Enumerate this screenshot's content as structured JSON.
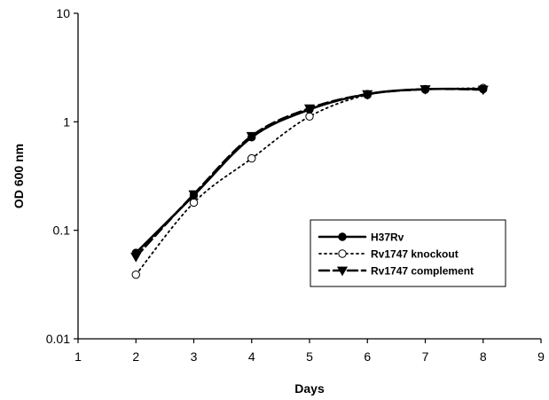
{
  "chart_data": {
    "type": "line",
    "title": "",
    "xlabel": "Days",
    "ylabel": "OD 600 nm",
    "xlim": [
      1,
      9
    ],
    "ylim": [
      0.01,
      10
    ],
    "yscale": "log",
    "grid": false,
    "legend_position": "bottom-right",
    "x_ticks": [
      "1",
      "2",
      "3",
      "4",
      "5",
      "6",
      "7",
      "8",
      "9"
    ],
    "y_ticks": [
      "0.01",
      "0.1",
      "1",
      "10"
    ],
    "x": [
      2,
      3,
      4,
      5,
      6,
      7,
      8
    ],
    "series": [
      {
        "name": "H37Rv",
        "values": [
          0.062,
          0.21,
          0.72,
          1.3,
          1.8,
          2.0,
          2.0
        ],
        "line": "solid",
        "marker": "filled-circle",
        "color": "#000000"
      },
      {
        "name": "Rv1747 knockout",
        "values": [
          0.039,
          0.18,
          0.46,
          1.12,
          1.77,
          1.98,
          2.05
        ],
        "line": "dotted",
        "marker": "open-circle",
        "color": "#000000"
      },
      {
        "name": "Rv1747 complement",
        "values": [
          0.057,
          0.215,
          0.74,
          1.33,
          1.8,
          2.0,
          1.98
        ],
        "line": "dashed",
        "marker": "filled-triangle-down",
        "color": "#000000"
      }
    ]
  }
}
